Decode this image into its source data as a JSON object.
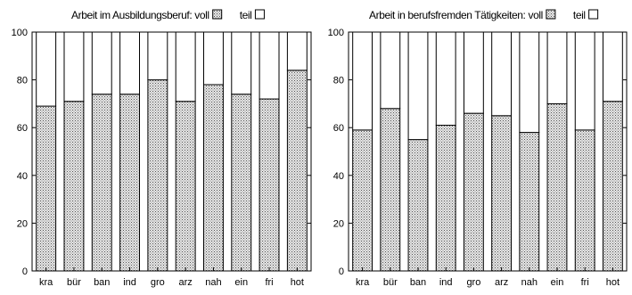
{
  "chart_data": [
    {
      "type": "bar",
      "stacked": true,
      "title": "Arbeit im Ausbildungsberuf:",
      "legend": [
        {
          "label": "voll",
          "fill": "dotted"
        },
        {
          "label": "teil",
          "fill": "white"
        }
      ],
      "categories": [
        "kra",
        "bür",
        "ban",
        "ind",
        "gro",
        "arz",
        "nah",
        "ein",
        "fri",
        "hot"
      ],
      "series": [
        {
          "name": "voll",
          "values": [
            69,
            71,
            74,
            74,
            80,
            71,
            78,
            74,
            72,
            84
          ]
        },
        {
          "name": "teil",
          "values": [
            31,
            29,
            26,
            26,
            20,
            29,
            22,
            26,
            28,
            16
          ]
        }
      ],
      "ylim": [
        0,
        100
      ],
      "yticks": [
        0,
        20,
        40,
        60,
        80,
        100
      ],
      "grid": false,
      "legend_position": "top-right"
    },
    {
      "type": "bar",
      "stacked": true,
      "title": "Arbeit in berufsfremden Tätigkeiten:",
      "legend": [
        {
          "label": "voll",
          "fill": "dotted"
        },
        {
          "label": "teil",
          "fill": "white"
        }
      ],
      "categories": [
        "kra",
        "bür",
        "ban",
        "ind",
        "gro",
        "arz",
        "nah",
        "ein",
        "fri",
        "hot"
      ],
      "series": [
        {
          "name": "voll",
          "values": [
            59,
            68,
            55,
            61,
            66,
            65,
            58,
            70,
            59,
            71
          ]
        },
        {
          "name": "teil",
          "values": [
            41,
            32,
            45,
            39,
            34,
            35,
            42,
            30,
            41,
            29
          ]
        }
      ],
      "ylim": [
        0,
        100
      ],
      "yticks": [
        0,
        20,
        40,
        60,
        80,
        100
      ],
      "grid": false,
      "legend_position": "top-right"
    }
  ],
  "colors": {
    "axis": "#000000",
    "teil_fill": "#ffffff",
    "voll_dots": "#555555",
    "voll_background": "#e6e6e6"
  }
}
